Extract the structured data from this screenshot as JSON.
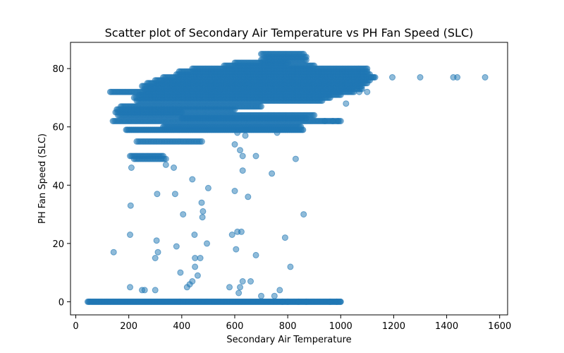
{
  "chart_data": {
    "type": "scatter",
    "title": "Scatter plot of Secondary Air Temperature vs PH Fan Speed (SLC)",
    "xlabel": "Secondary Air Temperature",
    "ylabel": "PH Fan Speed (SLC)",
    "xlim": [
      -20,
      1630
    ],
    "ylim": [
      -4.5,
      89
    ],
    "xticks": [
      0,
      200,
      400,
      600,
      800,
      1000,
      1200,
      1400,
      1600
    ],
    "xtick_labels": [
      "0",
      "200",
      "400",
      "600",
      "800",
      "1000",
      "1200",
      "1400",
      "1600"
    ],
    "yticks": [
      0,
      20,
      40,
      60,
      80
    ],
    "ytick_labels": [
      "0",
      "20",
      "40",
      "60",
      "80"
    ],
    "grid": false,
    "color": "#1f77b4",
    "bands": [
      {
        "y": 0,
        "x": [
          45,
          1000
        ],
        "step": 3
      },
      {
        "y": 59,
        "x": [
          190,
          860
        ],
        "step": 4
      },
      {
        "y": 60,
        "x": [
          330,
          850
        ],
        "step": 4
      },
      {
        "y": 62,
        "x": [
          140,
          1000
        ],
        "step": 5
      },
      {
        "y": 63,
        "x": [
          400,
          870
        ],
        "step": 5
      },
      {
        "y": 64,
        "x": [
          160,
          900
        ],
        "step": 5
      },
      {
        "y": 65,
        "x": [
          150,
          400
        ],
        "step": 5
      },
      {
        "y": 66,
        "x": [
          155,
          600
        ],
        "step": 5
      },
      {
        "y": 67,
        "x": [
          170,
          700
        ],
        "step": 5
      },
      {
        "y": 69,
        "x": [
          230,
          930
        ],
        "step": 5
      },
      {
        "y": 70,
        "x": [
          220,
          960
        ],
        "step": 5
      },
      {
        "y": 71,
        "x": [
          240,
          1000
        ],
        "step": 5
      },
      {
        "y": 72,
        "x": [
          130,
          1050
        ],
        "step": 5
      },
      {
        "y": 73,
        "x": [
          260,
          1080
        ],
        "step": 5
      },
      {
        "y": 74,
        "x": [
          250,
          1080
        ],
        "step": 5
      },
      {
        "y": 75,
        "x": [
          270,
          1100
        ],
        "step": 5
      },
      {
        "y": 76,
        "x": [
          300,
          1110
        ],
        "step": 5
      },
      {
        "y": 77,
        "x": [
          330,
          1130
        ],
        "step": 5
      },
      {
        "y": 78,
        "x": [
          380,
          1110
        ],
        "step": 5
      },
      {
        "y": 79,
        "x": [
          390,
          1100
        ],
        "step": 5
      },
      {
        "y": 80,
        "x": [
          440,
          1100
        ],
        "step": 5
      },
      {
        "y": 81,
        "x": [
          560,
          900
        ],
        "step": 5
      },
      {
        "y": 82,
        "x": [
          600,
          800
        ],
        "step": 5
      },
      {
        "y": 83,
        "x": [
          700,
          870
        ],
        "step": 5
      },
      {
        "y": 84,
        "x": [
          720,
          870
        ],
        "step": 5
      },
      {
        "y": 85,
        "x": [
          700,
          860
        ],
        "step": 5
      },
      {
        "y": 55,
        "x": [
          230,
          480
        ],
        "step": 6
      },
      {
        "y": 50,
        "x": [
          205,
          330
        ],
        "step": 5
      },
      {
        "y": 49,
        "x": [
          220,
          340
        ],
        "step": 6
      }
    ],
    "points": [
      [
        143,
        17
      ],
      [
        205,
        23
      ],
      [
        207,
        33
      ],
      [
        210,
        46
      ],
      [
        205,
        5
      ],
      [
        250,
        4
      ],
      [
        260,
        4
      ],
      [
        300,
        4
      ],
      [
        305,
        21
      ],
      [
        307,
        37
      ],
      [
        310,
        17
      ],
      [
        300,
        15
      ],
      [
        340,
        47
      ],
      [
        370,
        46
      ],
      [
        375,
        37
      ],
      [
        380,
        19
      ],
      [
        395,
        10
      ],
      [
        405,
        30
      ],
      [
        420,
        5
      ],
      [
        430,
        6
      ],
      [
        440,
        42
      ],
      [
        448,
        23
      ],
      [
        450,
        12
      ],
      [
        450,
        15
      ],
      [
        470,
        15
      ],
      [
        460,
        9
      ],
      [
        475,
        34
      ],
      [
        478,
        29
      ],
      [
        480,
        31
      ],
      [
        500,
        39
      ],
      [
        495,
        20
      ],
      [
        440,
        7
      ],
      [
        580,
        5
      ],
      [
        590,
        23
      ],
      [
        605,
        18
      ],
      [
        610,
        24
      ],
      [
        615,
        3
      ],
      [
        620,
        5
      ],
      [
        625,
        24
      ],
      [
        630,
        7
      ],
      [
        600,
        38
      ],
      [
        620,
        52
      ],
      [
        630,
        45
      ],
      [
        650,
        36
      ],
      [
        660,
        7
      ],
      [
        680,
        16
      ],
      [
        700,
        2
      ],
      [
        740,
        44
      ],
      [
        750,
        2
      ],
      [
        770,
        4
      ],
      [
        790,
        22
      ],
      [
        810,
        12
      ],
      [
        830,
        49
      ],
      [
        860,
        30
      ],
      [
        600,
        54
      ],
      [
        630,
        50
      ],
      [
        680,
        50
      ],
      [
        640,
        57
      ],
      [
        610,
        58
      ],
      [
        760,
        58
      ],
      [
        1195,
        77
      ],
      [
        1300,
        77
      ],
      [
        1425,
        77
      ],
      [
        1440,
        77
      ],
      [
        1545,
        77
      ],
      [
        1115,
        77
      ],
      [
        1125,
        77
      ],
      [
        1070,
        72
      ],
      [
        1100,
        72
      ],
      [
        1020,
        68
      ],
      [
        990,
        62
      ],
      [
        970,
        62
      ],
      [
        940,
        62
      ],
      [
        960,
        0
      ],
      [
        985,
        0
      ],
      [
        1000,
        0
      ],
      [
        870,
        0
      ],
      [
        840,
        0
      ],
      [
        800,
        0
      ],
      [
        780,
        0
      ]
    ]
  }
}
